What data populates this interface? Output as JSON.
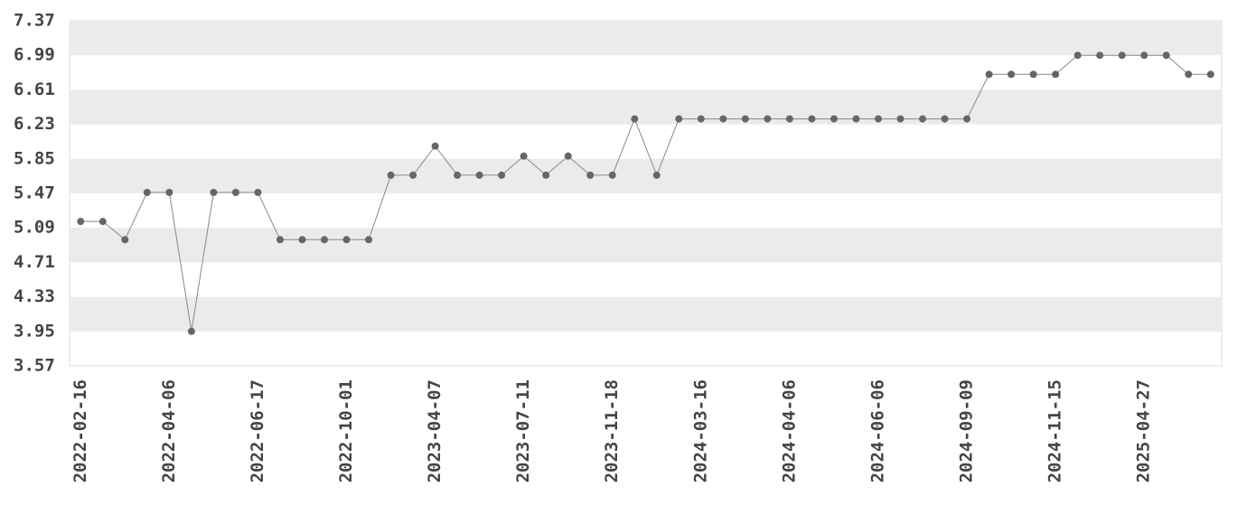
{
  "chart_data": {
    "type": "line",
    "categories": [
      "2022-02-16",
      null,
      null,
      null,
      "2022-04-06",
      null,
      null,
      null,
      "2022-06-17",
      null,
      null,
      null,
      "2022-10-01",
      null,
      null,
      null,
      "2023-04-07",
      null,
      null,
      null,
      "2023-07-11",
      null,
      null,
      null,
      "2023-11-18",
      null,
      null,
      null,
      "2024-03-16",
      null,
      null,
      null,
      "2024-04-06",
      null,
      null,
      null,
      "2024-06-06",
      null,
      null,
      null,
      "2024-09-09",
      null,
      null,
      null,
      "2024-11-15",
      null,
      null,
      null,
      "2025-04-27",
      null,
      null,
      null
    ],
    "values": [
      5.16,
      5.16,
      4.96,
      5.48,
      5.48,
      3.95,
      5.48,
      5.48,
      5.48,
      4.96,
      4.96,
      4.96,
      4.96,
      4.96,
      5.67,
      5.67,
      5.99,
      5.67,
      5.67,
      5.67,
      5.88,
      5.67,
      5.88,
      5.67,
      5.67,
      6.29,
      5.67,
      6.29,
      6.29,
      6.29,
      6.29,
      6.29,
      6.29,
      6.29,
      6.29,
      6.29,
      6.29,
      6.29,
      6.29,
      6.29,
      6.29,
      6.78,
      6.78,
      6.78,
      6.78,
      6.99,
      6.99,
      6.99,
      6.99,
      6.99,
      6.78,
      6.78
    ],
    "color": "#666666",
    "ylim": [
      3.57,
      7.37
    ],
    "yticks": [
      3.57,
      3.95,
      4.33,
      4.71,
      5.09,
      5.47,
      5.85,
      6.23,
      6.61,
      6.99,
      7.37
    ],
    "grid": true
  }
}
